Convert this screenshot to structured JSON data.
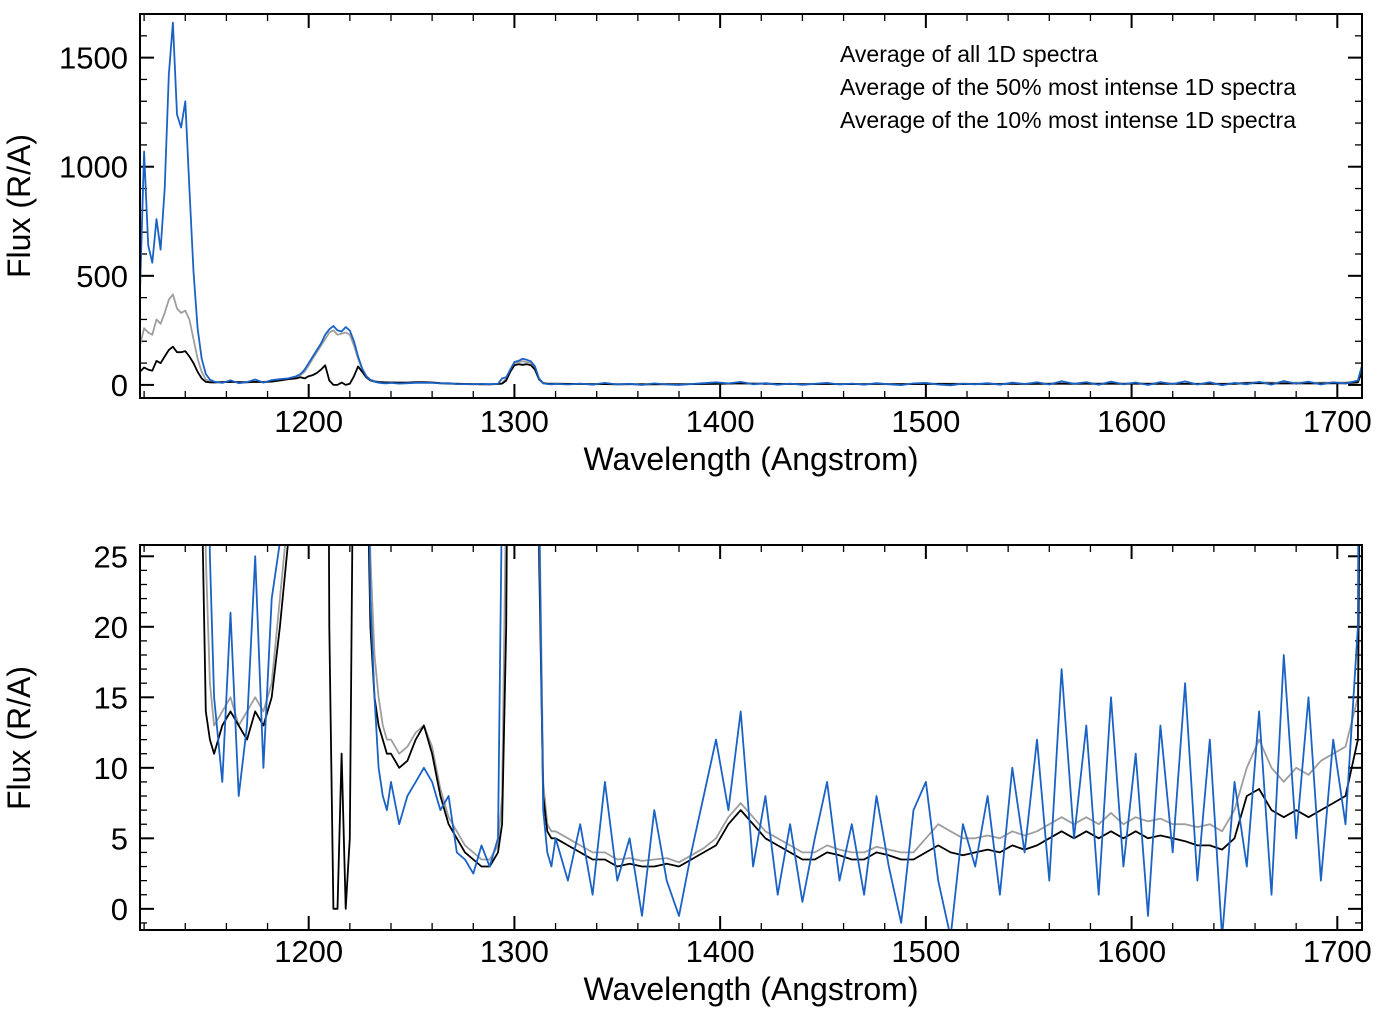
{
  "chart_data": {
    "type": "line",
    "title": "",
    "x_label": "Wavelength (Angstrom)",
    "y_label": "Flux (R/A)",
    "xlim": [
      1118,
      1712
    ],
    "xticks": [
      1200,
      1300,
      1400,
      1500,
      1600,
      1700
    ],
    "xminor": 20,
    "legend_position": "top-right",
    "grid": false,
    "panels": [
      {
        "ylim": [
          -60,
          1700
        ],
        "yticks": [
          0,
          500,
          1000,
          1500
        ],
        "yminor": 100,
        "legend": true
      },
      {
        "ylim": [
          -1.5,
          25.8
        ],
        "yticks": [
          0,
          5,
          10,
          15,
          20,
          25
        ],
        "yminor": 1,
        "legend": false
      }
    ],
    "x": [
      1118,
      1120,
      1122,
      1124,
      1126,
      1128,
      1130,
      1132,
      1134,
      1136,
      1138,
      1140,
      1142,
      1144,
      1146,
      1148,
      1150,
      1152,
      1154,
      1158,
      1162,
      1166,
      1170,
      1174,
      1178,
      1182,
      1186,
      1190,
      1194,
      1196,
      1198,
      1200,
      1202,
      1204,
      1206,
      1208,
      1210,
      1212,
      1214,
      1216,
      1218,
      1220,
      1222,
      1224,
      1226,
      1228,
      1230,
      1232,
      1234,
      1236,
      1238,
      1240,
      1244,
      1248,
      1252,
      1256,
      1260,
      1264,
      1268,
      1272,
      1276,
      1280,
      1284,
      1288,
      1292,
      1294,
      1296,
      1298,
      1300,
      1302,
      1304,
      1306,
      1308,
      1310,
      1312,
      1314,
      1316,
      1318,
      1320,
      1326,
      1332,
      1338,
      1344,
      1350,
      1356,
      1362,
      1368,
      1374,
      1380,
      1386,
      1392,
      1398,
      1404,
      1410,
      1416,
      1422,
      1428,
      1434,
      1440,
      1446,
      1452,
      1458,
      1464,
      1470,
      1476,
      1482,
      1488,
      1494,
      1500,
      1506,
      1512,
      1518,
      1524,
      1530,
      1536,
      1542,
      1548,
      1554,
      1560,
      1566,
      1572,
      1578,
      1584,
      1590,
      1596,
      1602,
      1608,
      1614,
      1620,
      1626,
      1632,
      1638,
      1644,
      1650,
      1656,
      1662,
      1668,
      1674,
      1680,
      1686,
      1692,
      1698,
      1704,
      1710,
      1712
    ],
    "series": [
      {
        "name": "Average of all 1D spectra",
        "color": "#000000",
        "values": [
          60,
          80,
          70,
          65,
          110,
          100,
          130,
          160,
          175,
          150,
          150,
          155,
          130,
          100,
          60,
          30,
          14,
          12,
          11,
          13,
          14,
          13,
          12,
          14,
          13,
          15,
          20,
          26,
          30,
          35,
          30,
          40,
          45,
          55,
          70,
          90,
          20,
          0,
          0,
          11,
          0,
          5,
          40,
          85,
          60,
          35,
          20,
          15,
          13,
          12,
          11,
          11,
          10,
          10.5,
          12,
          13,
          11,
          8,
          6,
          5,
          4,
          3.5,
          3,
          3,
          4,
          6,
          20,
          60,
          90,
          95,
          92,
          95,
          90,
          70,
          25,
          8,
          5.5,
          5,
          5,
          4.5,
          4,
          3.5,
          3.5,
          3,
          3.2,
          3,
          3,
          3.2,
          3,
          3.5,
          4,
          4.5,
          6,
          7,
          6,
          5,
          4.5,
          4,
          3.5,
          3.5,
          4,
          3.8,
          3.5,
          3.5,
          4,
          3.8,
          3.5,
          3.5,
          4,
          4.5,
          4,
          3.8,
          4,
          4.2,
          4,
          4.5,
          4.2,
          4.5,
          5,
          5.5,
          5,
          5.5,
          5,
          5.5,
          5,
          5.5,
          5,
          5.2,
          5,
          4.8,
          4.5,
          4.5,
          4.2,
          5,
          8,
          8.5,
          7,
          6.5,
          7,
          6.5,
          7,
          7.5,
          8,
          12,
          60
        ]
      },
      {
        "name": "Average of the 50% most intense 1D spectra",
        "color": "#9e9e9e",
        "values": [
          180,
          260,
          240,
          230,
          300,
          280,
          330,
          390,
          415,
          350,
          330,
          340,
          300,
          210,
          120,
          60,
          25,
          16,
          13,
          14,
          15,
          13,
          14,
          15,
          14,
          16,
          22,
          28,
          34,
          45,
          60,
          90,
          120,
          150,
          180,
          210,
          240,
          250,
          230,
          235,
          240,
          230,
          180,
          120,
          70,
          40,
          25,
          18,
          15,
          13,
          12,
          12,
          11,
          11.5,
          12.5,
          13,
          11.5,
          8.5,
          6.5,
          5.5,
          4.5,
          4,
          3.5,
          3.5,
          4.5,
          8,
          30,
          70,
          100,
          105,
          108,
          105,
          100,
          80,
          30,
          9,
          6,
          5.5,
          5.5,
          5,
          4.5,
          4,
          4,
          3.5,
          3.6,
          3.4,
          3.5,
          3.6,
          3.3,
          3.8,
          4.3,
          5,
          6.5,
          7.5,
          6.5,
          5.5,
          5,
          4.5,
          4,
          4,
          4.5,
          4.2,
          4,
          4,
          4.4,
          4.2,
          4,
          4,
          5,
          6,
          5.5,
          5,
          5,
          5.2,
          5,
          5.5,
          5.2,
          5.5,
          6,
          6.5,
          6,
          6.5,
          6,
          6.8,
          6,
          6.5,
          6.2,
          6.4,
          6,
          6,
          5.8,
          6,
          5.5,
          7,
          10,
          12,
          10,
          9,
          10,
          9.5,
          10.5,
          11,
          11.5,
          15,
          70
        ]
      },
      {
        "name": "Average of the 10% most intense 1D spectra",
        "color": "#1b62c5",
        "values": [
          430,
          1070,
          640,
          560,
          760,
          620,
          900,
          1420,
          1660,
          1240,
          1180,
          1300,
          900,
          520,
          260,
          120,
          50,
          25,
          15,
          9,
          21,
          8,
          13,
          25,
          10,
          22,
          26,
          30,
          40,
          50,
          70,
          100,
          130,
          160,
          190,
          230,
          255,
          270,
          250,
          245,
          265,
          250,
          200,
          130,
          75,
          40,
          22,
          15,
          10,
          8,
          7,
          9,
          6,
          8,
          9,
          10,
          9,
          7,
          8,
          4,
          3.5,
          2.5,
          4.5,
          3,
          5,
          30,
          35,
          70,
          105,
          110,
          120,
          115,
          108,
          85,
          28,
          7,
          4,
          3,
          5,
          2,
          6,
          1,
          9,
          2,
          5,
          -0.5,
          7,
          2,
          -0.5,
          4,
          8,
          12,
          7,
          14,
          3,
          8,
          1,
          6,
          0.5,
          5,
          9,
          2,
          6,
          1,
          8,
          3,
          -1,
          7,
          9,
          2,
          -2,
          6,
          3,
          8,
          1,
          10,
          4,
          12,
          2,
          17,
          5,
          13,
          1,
          15,
          3,
          11,
          -0.5,
          13,
          4,
          16,
          2,
          12,
          -2,
          9,
          3,
          14,
          1,
          18,
          5,
          15,
          2,
          12,
          6,
          20,
          90
        ]
      }
    ]
  }
}
